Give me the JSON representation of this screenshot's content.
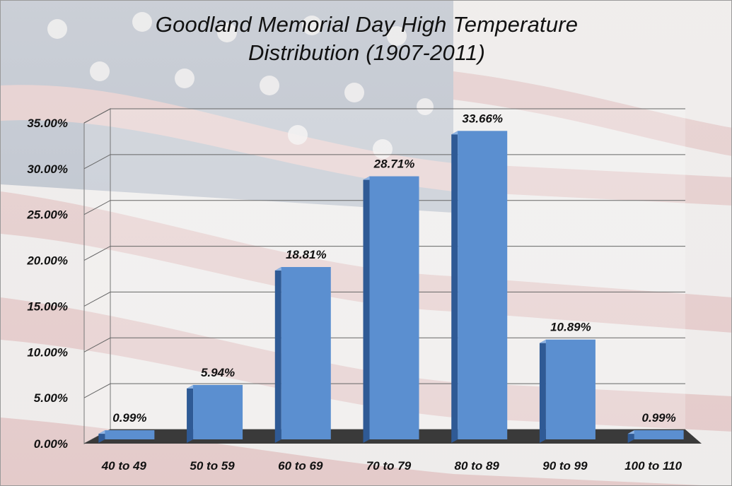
{
  "chart_data": {
    "type": "bar",
    "title_line1": "Goodland Memorial Day High Temperature",
    "title_line2": "Distribution (1907-2011)",
    "categories": [
      "40 to 49",
      "50 to 59",
      "60 to 69",
      "70 to 79",
      "80 to 89",
      "90 to 99",
      "100 to 110"
    ],
    "values": [
      0.99,
      5.94,
      18.81,
      28.71,
      33.66,
      10.89,
      0.99
    ],
    "data_labels": [
      "0.99%",
      "5.94%",
      "18.81%",
      "28.71%",
      "33.66%",
      "10.89%",
      "0.99%"
    ],
    "y_ticks": [
      "0.00%",
      "5.00%",
      "10.00%",
      "15.00%",
      "20.00%",
      "25.00%",
      "30.00%",
      "35.00%"
    ],
    "ylim": [
      0,
      35
    ],
    "grid": true,
    "legend": "none",
    "colors": {
      "bar_face": "#5b8fd0",
      "bar_side": "#2f5a95",
      "bar_top": "#8fb4e3",
      "floor": "#3a3a3a"
    },
    "background": "american-flag-image"
  }
}
